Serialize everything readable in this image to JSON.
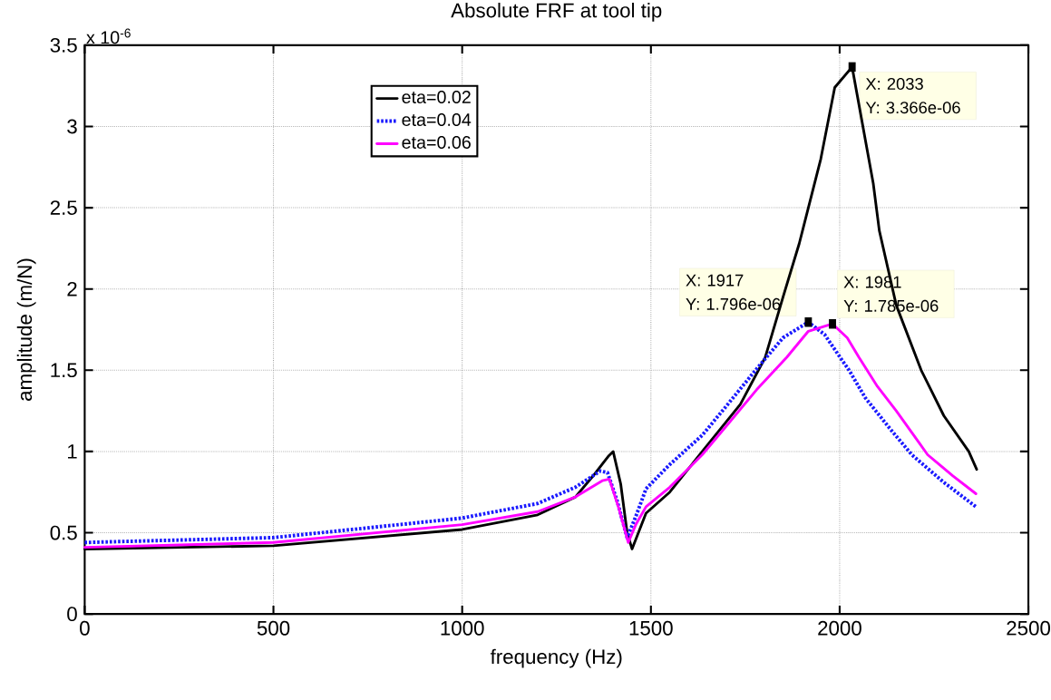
{
  "chart_data": {
    "type": "line",
    "title": "Absolute FRF at tool tip",
    "xlabel": "frequency (Hz)",
    "ylabel": "amplitude  (m/N)",
    "xlim": [
      0,
      2500
    ],
    "ylim": [
      0,
      3.5
    ],
    "xticks": [
      0,
      500,
      1000,
      1500,
      2000,
      2500
    ],
    "yticks": [
      0,
      0.5,
      1,
      1.5,
      2,
      2.5,
      3,
      3.5
    ],
    "grid": true,
    "legend": "top",
    "marker": "none",
    "annotations": [
      "x 10$^{-6}$",
      {
        "text": "X: 2033\nY: 3.366e-06",
        "x": 2033,
        "y": 3.366
      },
      {
        "text": "X: 1917\nY: 1.796e-06",
        "x": 1917,
        "y": 1.796
      },
      {
        "text": "X: 1981\nY: 1.785e-06",
        "x": 1981,
        "y": 1.785
      }
    ],
    "series": [
      {
        "name": "eta=0.02",
        "color": "#000000",
        "line_style": "solid",
        "x": [
          0,
          500,
          1000,
          1200,
          1300,
          1347,
          1387,
          1400,
          1420,
          1437,
          1450,
          1487,
          1550,
          1636,
          1737,
          1803,
          1850,
          1893,
          1950,
          1987,
          2033,
          2089,
          2105,
          2150,
          2216,
          2276,
          2342,
          2363
        ],
        "values": [
          0.4,
          0.42,
          0.52,
          0.61,
          0.72,
          0.85,
          0.97,
          1.0,
          0.8,
          0.5,
          0.4,
          0.62,
          0.75,
          1.0,
          1.29,
          1.58,
          1.95,
          2.28,
          2.8,
          3.24,
          3.366,
          2.65,
          2.36,
          1.9,
          1.5,
          1.22,
          1.0,
          0.89
        ]
      },
      {
        "name": "eta=0.04",
        "color": "#1a1aff",
        "line_style": "dotted",
        "x": [
          0,
          500,
          1000,
          1200,
          1300,
          1366,
          1385,
          1410,
          1437,
          1460,
          1487,
          1550,
          1636,
          1700,
          1777,
          1850,
          1917,
          1960,
          2001,
          2025,
          2068,
          2130,
          2191,
          2276,
          2361
        ],
        "values": [
          0.44,
          0.47,
          0.59,
          0.68,
          0.78,
          0.88,
          0.87,
          0.7,
          0.47,
          0.6,
          0.77,
          0.92,
          1.1,
          1.28,
          1.5,
          1.7,
          1.796,
          1.72,
          1.58,
          1.5,
          1.33,
          1.15,
          0.98,
          0.81,
          0.66
        ]
      },
      {
        "name": "eta=0.06",
        "color": "#ff00ff",
        "line_style": "solid",
        "x": [
          0,
          500,
          1000,
          1200,
          1300,
          1371,
          1390,
          1415,
          1440,
          1460,
          1487,
          1550,
          1636,
          1701,
          1780,
          1860,
          1917,
          1981,
          2020,
          2051,
          2100,
          2150,
          2233,
          2300,
          2361
        ],
        "values": [
          0.41,
          0.44,
          0.55,
          0.63,
          0.72,
          0.82,
          0.83,
          0.65,
          0.44,
          0.55,
          0.66,
          0.78,
          0.98,
          1.16,
          1.38,
          1.58,
          1.74,
          1.785,
          1.7,
          1.58,
          1.4,
          1.25,
          0.98,
          0.85,
          0.74
        ]
      }
    ]
  }
}
